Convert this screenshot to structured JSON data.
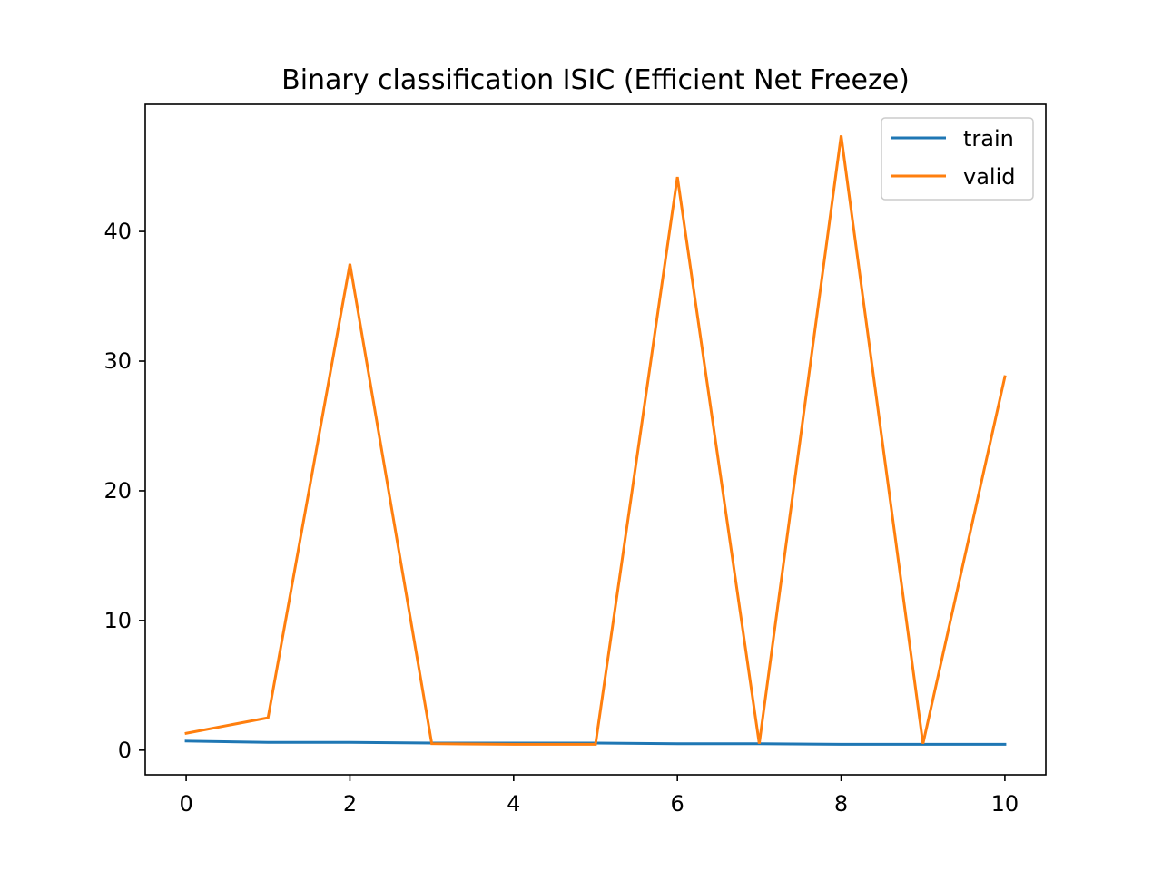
{
  "chart_data": {
    "type": "line",
    "title": "Binary classification ISIC (Efficient Net Freeze)",
    "xlabel": "",
    "ylabel": "",
    "x": [
      0,
      1,
      2,
      3,
      4,
      5,
      6,
      7,
      8,
      9,
      10
    ],
    "xlim": [
      -0.5,
      10.5
    ],
    "ylim": [
      -1.9,
      49.8
    ],
    "xticks": [
      0,
      2,
      4,
      6,
      8,
      10
    ],
    "yticks": [
      0,
      10,
      20,
      30,
      40
    ],
    "grid": false,
    "legend_position": "upper right",
    "series": [
      {
        "name": "train",
        "color": "#1f77b4",
        "values": [
          0.7,
          0.6,
          0.6,
          0.55,
          0.55,
          0.55,
          0.5,
          0.5,
          0.45,
          0.45,
          0.45
        ]
      },
      {
        "name": "valid",
        "color": "#ff7f0e",
        "values": [
          1.3,
          2.5,
          37.5,
          0.5,
          0.45,
          0.45,
          44.2,
          0.5,
          47.4,
          0.5,
          28.8
        ]
      }
    ]
  }
}
